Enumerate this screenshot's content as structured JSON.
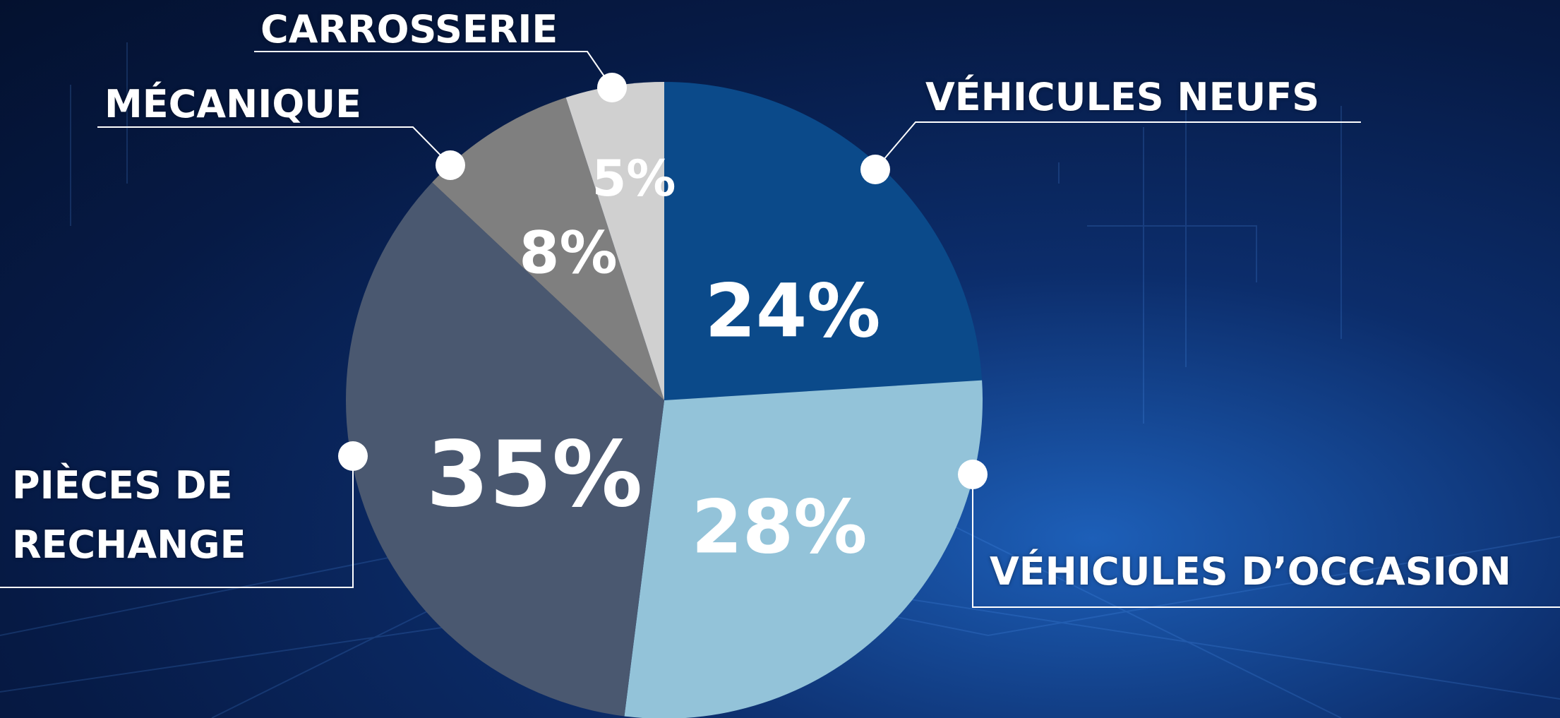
{
  "chart_data": {
    "type": "pie",
    "categories": [
      "VÉHICULES NEUFS",
      "VÉHICULES D’OCCASION",
      "PIÈCES DE RECHANGE",
      "MÉCANIQUE",
      "CARROSSERIE"
    ],
    "values": [
      24,
      28,
      35,
      8,
      5
    ],
    "value_labels": [
      "24%",
      "28%",
      "35%",
      "8%",
      "5%"
    ],
    "colors": [
      "#0b4a8a",
      "#93c3d9",
      "#4a5870",
      "#7f7f7f",
      "#d0d0d0"
    ]
  }
}
